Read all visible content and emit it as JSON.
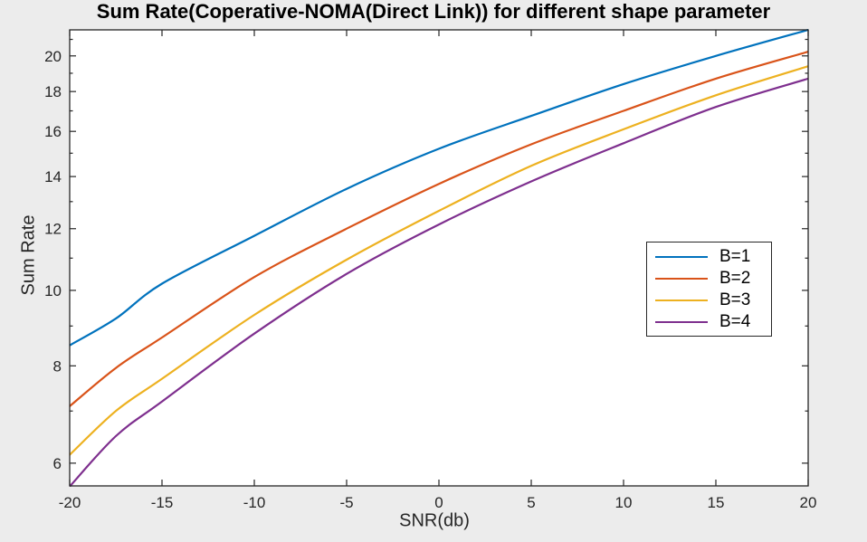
{
  "figure": {
    "background_color": "#ececec",
    "plot_background_color": "#ffffff",
    "axis_color": "#262626",
    "tick_label_color": "#262626",
    "title_color": "#000000"
  },
  "chart_data": {
    "type": "line",
    "title": "Sum Rate(Coperative-NOMA(Direct Link)) for different shape parameter",
    "xlabel": "SNR(db)",
    "ylabel": "Sum Rate",
    "xlim": [
      -20,
      20
    ],
    "ylim": [
      5.61,
      21.6
    ],
    "xscale": "linear",
    "yscale": "log",
    "grid": false,
    "box": true,
    "tick_direction": "in",
    "xticks": [
      -20,
      -15,
      -10,
      -5,
      0,
      5,
      10,
      15,
      20
    ],
    "yticks": [
      6,
      8,
      10,
      12,
      14,
      16,
      18,
      20
    ],
    "y_minor_ticks": [
      7,
      9,
      11,
      13,
      15,
      17,
      19,
      21
    ],
    "legend": {
      "position": "middle-right-inside",
      "entries": [
        "B=1",
        "B=2",
        "B=3",
        "B=4"
      ]
    },
    "x": [
      -20,
      -17.5,
      -15,
      -10,
      -5,
      0,
      5,
      10,
      15,
      20
    ],
    "series": [
      {
        "name": "B=1",
        "color": "#0072BD",
        "values": [
          8.5,
          9.2,
          10.2,
          11.75,
          13.5,
          15.2,
          16.75,
          18.4,
          20.0,
          21.6
        ]
      },
      {
        "name": "B=2",
        "color": "#D95319",
        "values": [
          7.1,
          7.95,
          8.7,
          10.4,
          12.0,
          13.7,
          15.4,
          17.0,
          18.7,
          20.25
        ]
      },
      {
        "name": "B=3",
        "color": "#EDB120",
        "values": [
          6.15,
          7.0,
          7.7,
          9.3,
          10.95,
          12.65,
          14.45,
          16.1,
          17.8,
          19.4
        ]
      },
      {
        "name": "B=4",
        "color": "#7E2F8E",
        "values": [
          5.6,
          6.5,
          7.2,
          8.8,
          10.5,
          12.15,
          13.8,
          15.45,
          17.2,
          18.7
        ]
      }
    ]
  }
}
